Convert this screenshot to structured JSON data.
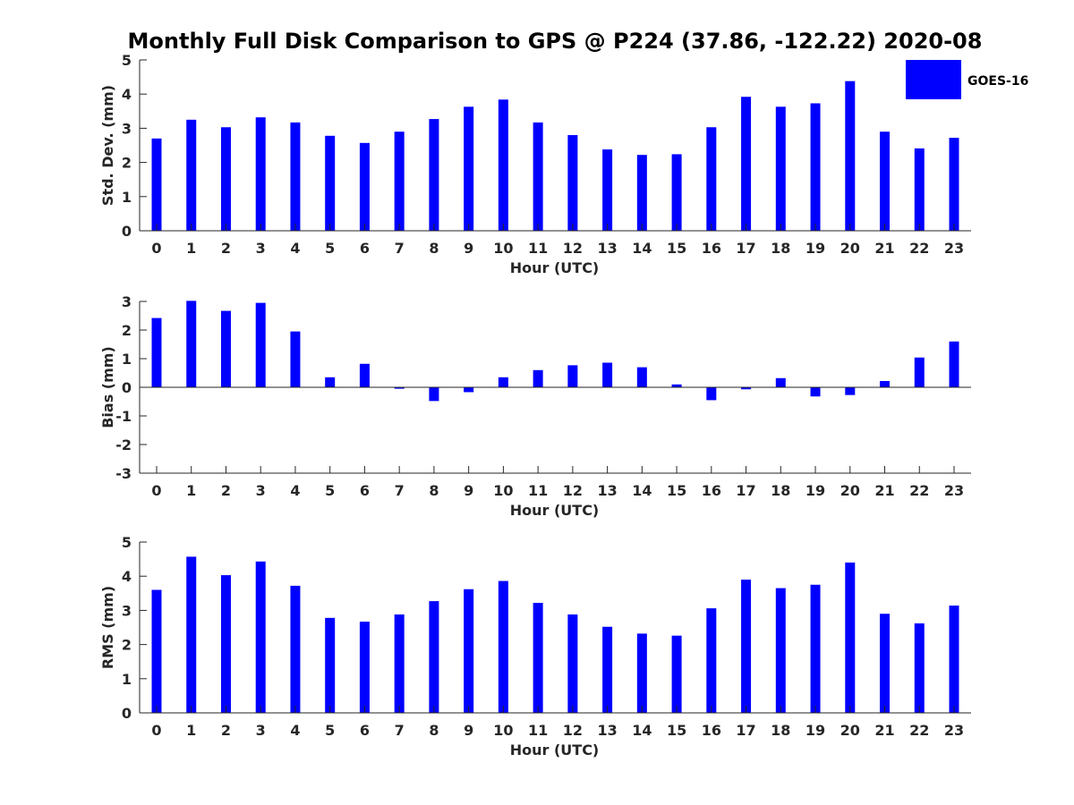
{
  "title": "Monthly Full Disk Comparison to GPS @ P224 (37.86, -122.22) 2020-08",
  "legend": {
    "label": "GOES-16",
    "color": "#0000ff"
  },
  "chart_data": [
    {
      "type": "bar",
      "categories": [
        "0",
        "1",
        "2",
        "3",
        "4",
        "5",
        "6",
        "7",
        "8",
        "9",
        "10",
        "11",
        "12",
        "13",
        "14",
        "15",
        "16",
        "17",
        "18",
        "19",
        "20",
        "21",
        "22",
        "23"
      ],
      "series": [
        {
          "name": "GOES-16",
          "color": "#0000ff",
          "values": [
            2.7,
            3.25,
            3.03,
            3.32,
            3.17,
            2.78,
            2.57,
            2.9,
            3.27,
            3.63,
            3.84,
            3.17,
            2.8,
            2.38,
            2.22,
            2.24,
            3.03,
            3.92,
            3.63,
            3.73,
            4.38,
            2.9,
            2.41,
            2.72
          ]
        }
      ],
      "xlabel": "Hour (UTC)",
      "ylabel": "Std. Dev. (mm)",
      "ylim": [
        0,
        5
      ],
      "yticks": [
        "0",
        "1",
        "2",
        "3",
        "4",
        "5"
      ],
      "legend": "top-right",
      "grid": false
    },
    {
      "type": "bar",
      "categories": [
        "0",
        "1",
        "2",
        "3",
        "4",
        "5",
        "6",
        "7",
        "8",
        "9",
        "10",
        "11",
        "12",
        "13",
        "14",
        "15",
        "16",
        "17",
        "18",
        "19",
        "20",
        "21",
        "22",
        "23"
      ],
      "series": [
        {
          "name": "GOES-16",
          "color": "#0000ff",
          "values": [
            2.42,
            3.02,
            2.67,
            2.95,
            1.95,
            0.35,
            0.82,
            -0.05,
            -0.48,
            -0.17,
            0.35,
            0.6,
            0.77,
            0.86,
            0.7,
            0.1,
            -0.45,
            -0.07,
            0.32,
            -0.32,
            -0.27,
            0.22,
            1.04,
            1.6
          ]
        }
      ],
      "xlabel": "Hour (UTC)",
      "ylabel": "Bias (mm)",
      "ylim": [
        -3,
        3
      ],
      "yticks": [
        "-3",
        "-2",
        "-1",
        "0",
        "1",
        "2",
        "3"
      ],
      "grid": false
    },
    {
      "type": "bar",
      "categories": [
        "0",
        "1",
        "2",
        "3",
        "4",
        "5",
        "6",
        "7",
        "8",
        "9",
        "10",
        "11",
        "12",
        "13",
        "14",
        "15",
        "16",
        "17",
        "18",
        "19",
        "20",
        "21",
        "22",
        "23"
      ],
      "series": [
        {
          "name": "GOES-16",
          "color": "#0000ff",
          "values": [
            3.6,
            4.57,
            4.03,
            4.43,
            3.72,
            2.78,
            2.67,
            2.88,
            3.27,
            3.62,
            3.86,
            3.22,
            2.88,
            2.52,
            2.32,
            2.26,
            3.06,
            3.9,
            3.65,
            3.75,
            4.4,
            2.9,
            2.62,
            3.14
          ]
        }
      ],
      "xlabel": "Hour (UTC)",
      "ylabel": "RMS (mm)",
      "ylim": [
        0,
        5
      ],
      "yticks": [
        "0",
        "1",
        "2",
        "3",
        "4",
        "5"
      ],
      "grid": false
    }
  ]
}
